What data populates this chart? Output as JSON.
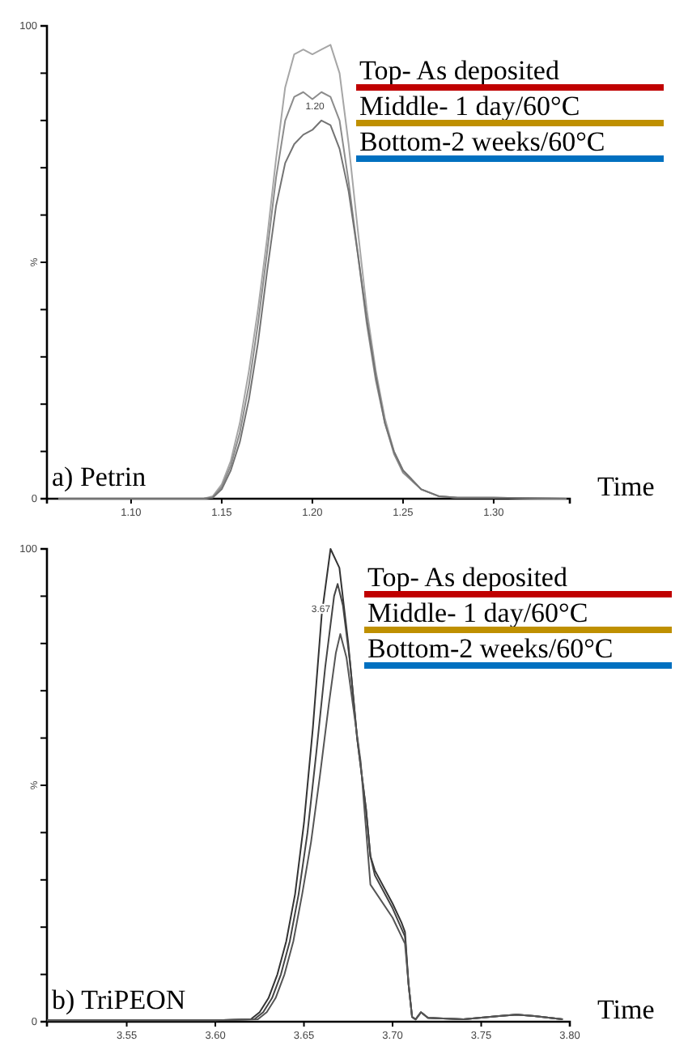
{
  "chart_data": [
    {
      "type": "line",
      "title": "a) Petrin",
      "xlabel": "Time",
      "ylabel": "%",
      "xlim": [
        1.0536,
        1.342
      ],
      "xticks": [
        {
          "value": 1.1,
          "label": "1.10"
        },
        1.15,
        {
          "value": 1.2,
          "label": "1.20"
        },
        1.25,
        {
          "value": 1.3,
          "label": "1.30"
        }
      ],
      "ylim": [
        0,
        100
      ],
      "yticks": [
        {
          "value": 0,
          "label": "0"
        },
        {
          "value": 10,
          "label": null
        },
        {
          "value": 20,
          "label": null
        },
        {
          "value": 30,
          "label": null
        },
        {
          "value": 40,
          "label": null
        },
        {
          "value": 50,
          "label": null
        },
        {
          "value": 60,
          "label": null
        },
        {
          "value": 70,
          "label": null
        },
        {
          "value": 80,
          "label": null
        },
        {
          "value": 90,
          "label": null
        },
        {
          "value": 100,
          "label": "100"
        }
      ],
      "grid": false,
      "marker": "none",
      "line_style": "solid",
      "series": [
        {
          "color": "#a6a6a6",
          "x": [
            1.06,
            1.14,
            1.145,
            1.15,
            1.155,
            1.16,
            1.165,
            1.17,
            1.175,
            1.18,
            1.185,
            1.19,
            1.195,
            1.2,
            1.205,
            1.21,
            1.215,
            1.22,
            1.225,
            1.23,
            1.235,
            1.24,
            1.245,
            1.25,
            1.26,
            1.27,
            1.28,
            1.3,
            1.34
          ],
          "values": [
            0,
            0,
            0.5,
            3,
            8,
            16,
            27,
            40,
            55,
            72,
            87,
            94,
            95,
            94,
            95,
            96,
            90,
            75,
            57,
            40,
            27,
            17,
            10,
            6,
            2,
            0.5,
            0.2,
            0.2,
            0
          ]
        },
        {
          "color": "#8c8c8c",
          "x": [
            1.06,
            1.14,
            1.145,
            1.15,
            1.155,
            1.16,
            1.165,
            1.17,
            1.175,
            1.18,
            1.185,
            1.19,
            1.195,
            1.2,
            1.205,
            1.21,
            1.215,
            1.22,
            1.225,
            1.23,
            1.235,
            1.24,
            1.245,
            1.25,
            1.26,
            1.27,
            1.28,
            1.3,
            1.34
          ],
          "values": [
            0,
            0,
            0.3,
            2.5,
            7,
            14,
            24,
            37,
            52,
            68,
            80,
            85,
            86,
            84.5,
            86,
            85,
            80,
            67,
            52,
            37,
            25,
            16,
            9.5,
            5.5,
            2,
            0.5,
            0.2,
            0.2,
            0
          ]
        },
        {
          "color": "#737373",
          "x": [
            1.06,
            1.14,
            1.145,
            1.15,
            1.155,
            1.16,
            1.165,
            1.17,
            1.175,
            1.18,
            1.185,
            1.19,
            1.195,
            1.2,
            1.205,
            1.21,
            1.215,
            1.22,
            1.225,
            1.23,
            1.235,
            1.24,
            1.245,
            1.25,
            1.26,
            1.27,
            1.28,
            1.3,
            1.34
          ],
          "values": [
            0,
            0,
            0.2,
            2,
            6,
            12,
            21,
            33,
            48,
            62,
            71,
            75,
            77,
            78,
            80,
            79,
            74,
            65,
            52,
            38,
            26,
            16,
            10,
            6,
            2,
            0.5,
            0.2,
            0.2,
            0
          ]
        }
      ],
      "annotations": [
        "1.20",
        "Top- As deposited",
        "Middle- 1 day/60°C",
        "Bottom-2 weeks/60°C"
      ]
    },
    {
      "type": "line",
      "title": "b) TriPEON",
      "xlabel": "Time",
      "ylabel": "%",
      "xlim": [
        3.505,
        3.8
      ],
      "xticks": [
        3.55,
        {
          "value": 3.6,
          "label": "3.60"
        },
        3.65,
        {
          "value": 3.7,
          "label": "3.70"
        },
        3.75,
        {
          "value": 3.8,
          "label": "3.80"
        }
      ],
      "ylim": [
        0,
        100
      ],
      "yticks": [
        {
          "value": 0,
          "label": "0"
        },
        {
          "value": 10,
          "label": null
        },
        {
          "value": 20,
          "label": null
        },
        {
          "value": 30,
          "label": null
        },
        {
          "value": 40,
          "label": null
        },
        {
          "value": 50,
          "label": null
        },
        {
          "value": 60,
          "label": null
        },
        {
          "value": 70,
          "label": null
        },
        {
          "value": 80,
          "label": null
        },
        {
          "value": 90,
          "label": null
        },
        {
          "value": 100,
          "label": "100"
        }
      ],
      "grid": false,
      "marker": "none",
      "line_style": "solid",
      "series": [
        {
          "color": "#333333",
          "x": [
            3.505,
            3.6,
            3.62,
            3.625,
            3.63,
            3.635,
            3.64,
            3.645,
            3.65,
            3.655,
            3.66,
            3.665,
            3.67,
            3.675,
            3.68,
            3.685,
            3.6875,
            3.69,
            3.7,
            3.705,
            3.707,
            3.709,
            3.711,
            3.713,
            3.716,
            3.72,
            3.74,
            3.76,
            3.77,
            3.78,
            3.796
          ],
          "values": [
            0.3,
            0.3,
            0.5,
            2,
            5,
            10,
            17,
            27,
            42,
            62,
            86,
            100,
            96,
            80,
            60,
            45,
            35,
            32,
            25,
            21,
            19,
            8,
            1,
            0.5,
            2,
            0.8,
            0.5,
            1.2,
            1.5,
            1.2,
            0.5
          ]
        },
        {
          "color": "#444444",
          "x": [
            3.505,
            3.6,
            3.622,
            3.627,
            3.632,
            3.637,
            3.642,
            3.647,
            3.652,
            3.657,
            3.662,
            3.667,
            3.669,
            3.672,
            3.676,
            3.68,
            3.685,
            3.6875,
            3.69,
            3.7,
            3.707,
            3.709,
            3.711,
            3.713,
            3.716,
            3.72,
            3.74,
            3.76,
            3.77,
            3.78,
            3.796
          ],
          "values": [
            0.3,
            0.3,
            0.5,
            2,
            5,
            10,
            17,
            27,
            40,
            57,
            75,
            90,
            92.6,
            88,
            76,
            60,
            45,
            35,
            31,
            24,
            18,
            8,
            1,
            0.5,
            2,
            0.8,
            0.5,
            1.2,
            1.5,
            1.2,
            0.5
          ]
        },
        {
          "color": "#555555",
          "x": [
            3.505,
            3.6,
            3.624,
            3.629,
            3.634,
            3.639,
            3.644,
            3.649,
            3.654,
            3.659,
            3.664,
            3.668,
            3.6705,
            3.674,
            3.678,
            3.682,
            3.6875,
            3.7,
            3.707,
            3.709,
            3.711,
            3.713,
            3.716,
            3.72,
            3.74,
            3.76,
            3.77,
            3.78,
            3.796
          ],
          "values": [
            0.3,
            0.3,
            0.5,
            2,
            5,
            10,
            17,
            27,
            38,
            52,
            67,
            78,
            82,
            77,
            66,
            55,
            29,
            22,
            16.5,
            8,
            1,
            0.5,
            2,
            0.8,
            0.5,
            1.2,
            1.5,
            1.2,
            0.5
          ]
        }
      ],
      "annotations": [
        "3.67",
        "Top- As deposited",
        "Middle- 1 day/60°C",
        "Bottom-2 weeks/60°C"
      ]
    }
  ]
}
